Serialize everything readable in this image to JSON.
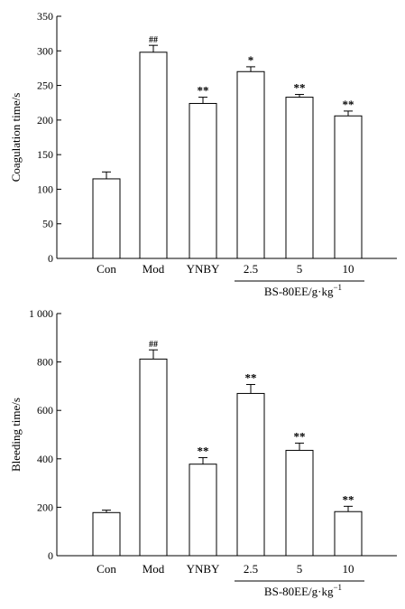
{
  "chart_data": [
    {
      "type": "bar",
      "categories": [
        "Con",
        "Mod",
        "YNBY",
        "2.5",
        "5",
        "10"
      ],
      "values": [
        115,
        298,
        224,
        270,
        233,
        206
      ],
      "errors": [
        10,
        10,
        9,
        7,
        4,
        7
      ],
      "significance": [
        "",
        "##",
        "**",
        "*",
        "**",
        "**"
      ],
      "ylabel": "Coagulation time/s",
      "ylim": [
        0,
        350
      ],
      "yticks": [
        0,
        50,
        100,
        150,
        200,
        250,
        300,
        350
      ],
      "ytick_labels": [
        "0",
        "50",
        "100",
        "150",
        "200",
        "250",
        "300",
        "350"
      ],
      "group_label": "BS-80EE/g·kg",
      "group_label_sup": "−1",
      "group_categories": [
        "2.5",
        "5",
        "10"
      ]
    },
    {
      "type": "bar",
      "categories": [
        "Con",
        "Mod",
        "YNBY",
        "2.5",
        "5",
        "10"
      ],
      "values": [
        178,
        812,
        378,
        670,
        435,
        182
      ],
      "errors": [
        10,
        38,
        27,
        37,
        30,
        22
      ],
      "significance": [
        "",
        "##",
        "**",
        "**",
        "**",
        "**"
      ],
      "ylabel": "Bleeding time/s",
      "ylim": [
        0,
        1000
      ],
      "yticks": [
        0,
        200,
        400,
        600,
        800,
        1000
      ],
      "ytick_labels": [
        "0",
        "200",
        "400",
        "600",
        "800",
        "1 000"
      ],
      "group_label": "BS-80EE/g·kg",
      "group_label_sup": "−1",
      "group_categories": [
        "2.5",
        "5",
        "10"
      ]
    }
  ]
}
